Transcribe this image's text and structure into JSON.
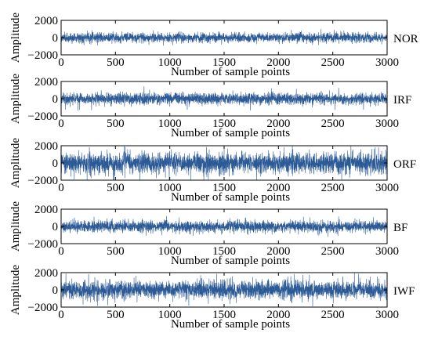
{
  "figure": {
    "series_color": "#2c5a96",
    "x_ticks": [
      0,
      500,
      1000,
      1500,
      2000,
      2500,
      3000
    ],
    "y_ticks": [
      -2000,
      0,
      2000
    ]
  },
  "chart_data": [
    {
      "type": "line",
      "name": "NOR",
      "xlabel": "Number of sample points",
      "ylabel": "Amplitude",
      "xlim": [
        0,
        3000
      ],
      "ylim": [
        -2000,
        2000
      ],
      "grid": false,
      "samples": 3000,
      "typical_amplitude_range": [
        -600,
        600
      ],
      "peak_amplitude_range": [
        -1000,
        1000
      ]
    },
    {
      "type": "line",
      "name": "IRF",
      "xlabel": "Number of sample points",
      "ylabel": "Amplitude",
      "xlim": [
        0,
        3000
      ],
      "ylim": [
        -2000,
        2000
      ],
      "grid": false,
      "samples": 3000,
      "typical_amplitude_range": [
        -700,
        700
      ],
      "peak_amplitude_range": [
        -1500,
        1500
      ]
    },
    {
      "type": "line",
      "name": "ORF",
      "xlabel": "Number of sample points",
      "ylabel": "Amplitude",
      "xlim": [
        0,
        3000
      ],
      "ylim": [
        -2000,
        2000
      ],
      "grid": false,
      "samples": 3000,
      "typical_amplitude_range": [
        -1300,
        1300
      ],
      "peak_amplitude_range": [
        -2000,
        2000
      ]
    },
    {
      "type": "line",
      "name": "BF",
      "xlabel": "Number of sample points",
      "ylabel": "Amplitude",
      "xlim": [
        0,
        3000
      ],
      "ylim": [
        -2000,
        2000
      ],
      "grid": false,
      "samples": 3000,
      "typical_amplitude_range": [
        -700,
        700
      ],
      "peak_amplitude_range": [
        -1200,
        1200
      ]
    },
    {
      "type": "line",
      "name": "IWF",
      "xlabel": "Number of sample points",
      "ylabel": "Amplitude",
      "xlim": [
        0,
        3000
      ],
      "ylim": [
        -2000,
        2000
      ],
      "grid": false,
      "samples": 3000,
      "typical_amplitude_range": [
        -1100,
        1100
      ],
      "peak_amplitude_range": [
        -2000,
        2000
      ]
    }
  ]
}
